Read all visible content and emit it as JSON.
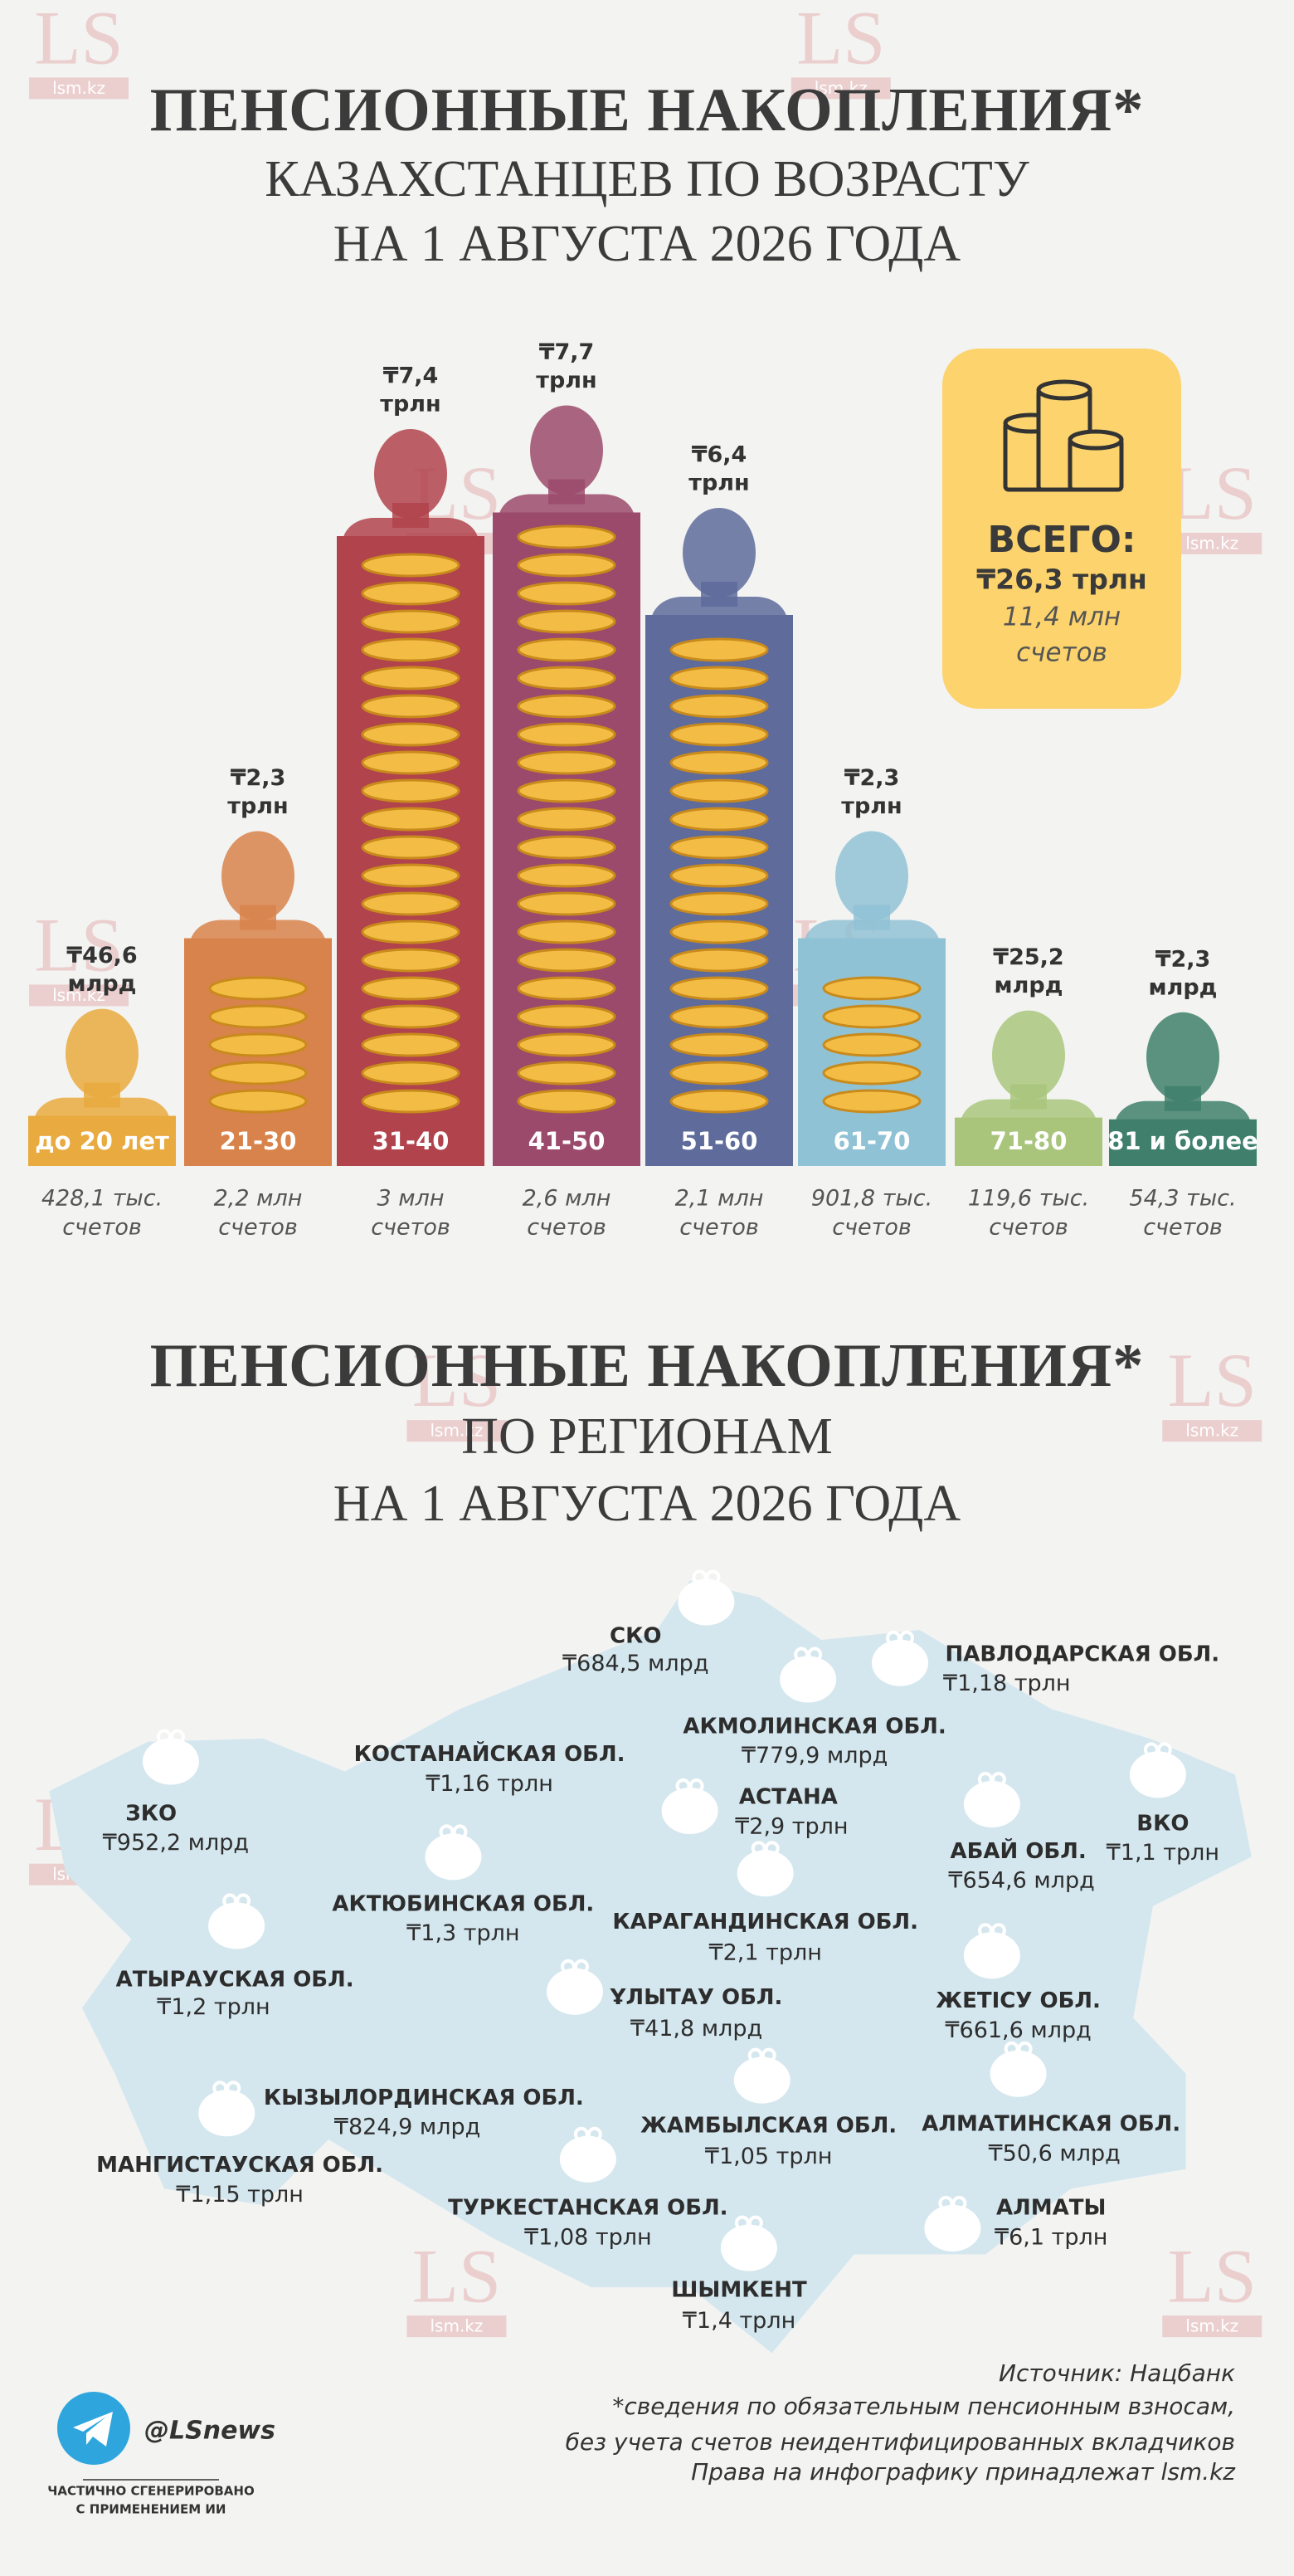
{
  "chart_data": {
    "type": "bar",
    "title": "ПЕНСИОННЫЕ НАКОПЛЕНИЯ*",
    "subtitle": [
      "КАЗАХСТАНЦЕВ ПО ВОЗРАСТУ",
      "НА 1 АВГУСТА 2026 ГОДА"
    ],
    "categories": [
      "до 20 лет",
      "21-30",
      "31-40",
      "41-50",
      "51-60",
      "61-70",
      "71-80",
      "81 и более"
    ],
    "values": [
      0.0466,
      2.3,
      7.4,
      7.7,
      6.4,
      2.3,
      0.0252,
      0.0023
    ],
    "value_labels": [
      [
        "₸46,6",
        "млрд"
      ],
      [
        "₸2,3",
        "трлн"
      ],
      [
        "₸7,4",
        "трлн"
      ],
      [
        "₸7,7",
        "трлн"
      ],
      [
        "₸6,4",
        "трлн"
      ],
      [
        "₸2,3",
        "трлн"
      ],
      [
        "₸25,2",
        "млрд"
      ],
      [
        "₸2,3",
        "млрд"
      ]
    ],
    "accounts": [
      [
        "428,1 тыс.",
        "счетов"
      ],
      [
        "2,2 млн",
        "счетов"
      ],
      [
        "3 млн",
        "счетов"
      ],
      [
        "2,6 млн",
        "счетов"
      ],
      [
        "2,1 млн",
        "счетов"
      ],
      [
        "901,8 тыс.",
        "счетов"
      ],
      [
        "119,6 тыс.",
        "счетов"
      ],
      [
        "54,3 тыс.",
        "счетов"
      ]
    ],
    "colors": [
      "#e9aa3f",
      "#d8834b",
      "#b0434c",
      "#9b4a6b",
      "#5e6b9b",
      "#90c2d5",
      "#a9c57c",
      "#3f7f6b"
    ],
    "total": {
      "label": "ВСЕГО:",
      "amount": "₸26,3 трлн",
      "accounts": [
        "11,4 млн",
        "счетов"
      ]
    }
  },
  "map": {
    "title": "ПЕНСИОННЫЕ НАКОПЛЕНИЯ*",
    "subtitle": [
      "ПО РЕГИОНАМ",
      "НА 1 АВГУСТА 2026 ГОДА"
    ],
    "regions": [
      {
        "name": "СКО",
        "value": "₸684,5 млрд"
      },
      {
        "name": "ПАВЛОДАРСКАЯ ОБЛ.",
        "value": "₸1,18 трлн"
      },
      {
        "name": "АКМОЛИНСКАЯ ОБЛ.",
        "value": "₸779,9 млрд"
      },
      {
        "name": "КОСТАНАЙСКАЯ ОБЛ.",
        "value": "₸1,16 трлн"
      },
      {
        "name": "ЗКО",
        "value": "₸952,2 млрд"
      },
      {
        "name": "АСТАНА",
        "value": "₸2,9 трлн"
      },
      {
        "name": "АБАЙ ОБЛ.",
        "value": "₸654,6 млрд"
      },
      {
        "name": "ВКО",
        "value": "₸1,1 трлн"
      },
      {
        "name": "АКТЮБИНСКАЯ ОБЛ.",
        "value": "₸1,3 трлн"
      },
      {
        "name": "КАРАГАНДИНСКАЯ ОБЛ.",
        "value": "₸2,1 трлн"
      },
      {
        "name": "АТЫРАУСКАЯ ОБЛ.",
        "value": "₸1,2 трлн"
      },
      {
        "name": "ҰЛЫТАУ ОБЛ.",
        "value": "₸41,8 млрд"
      },
      {
        "name": "ЖЕТІСУ ОБЛ.",
        "value": "₸661,6 млрд"
      },
      {
        "name": "КЫЗЫЛОРДИНСКАЯ ОБЛ.",
        "value": "₸824,9 млрд"
      },
      {
        "name": "ЖАМБЫЛСКАЯ ОБЛ.",
        "value": "₸1,05 трлн"
      },
      {
        "name": "АЛМАТИНСКАЯ ОБЛ.",
        "value": "₸50,6 млрд"
      },
      {
        "name": "МАНГИСТАУСКАЯ ОБЛ.",
        "value": "₸1,15 трлн"
      },
      {
        "name": "ТУРКЕСТАНСКАЯ ОБЛ.",
        "value": "₸1,08 трлн"
      },
      {
        "name": "АЛМАТЫ",
        "value": "₸6,1 трлн"
      },
      {
        "name": "ШЫМКЕНТ",
        "value": "₸1,4 трлн"
      }
    ]
  },
  "footer": {
    "handle": "@LSnews",
    "ai_note": [
      "ЧАСТИЧНО СГЕНЕРИРОВАНО",
      "С ПРИМЕНЕНИЕМ ИИ"
    ],
    "source": "Источник: Нацбанк",
    "notes": [
      "*сведения по обязательным пенсионным взносам,",
      "без учета счетов неидентифицированных вкладчиков",
      "Права на инфографику принадлежат lsm.kz"
    ]
  },
  "watermark": {
    "logo": "LS",
    "site": "lsm.kz"
  }
}
